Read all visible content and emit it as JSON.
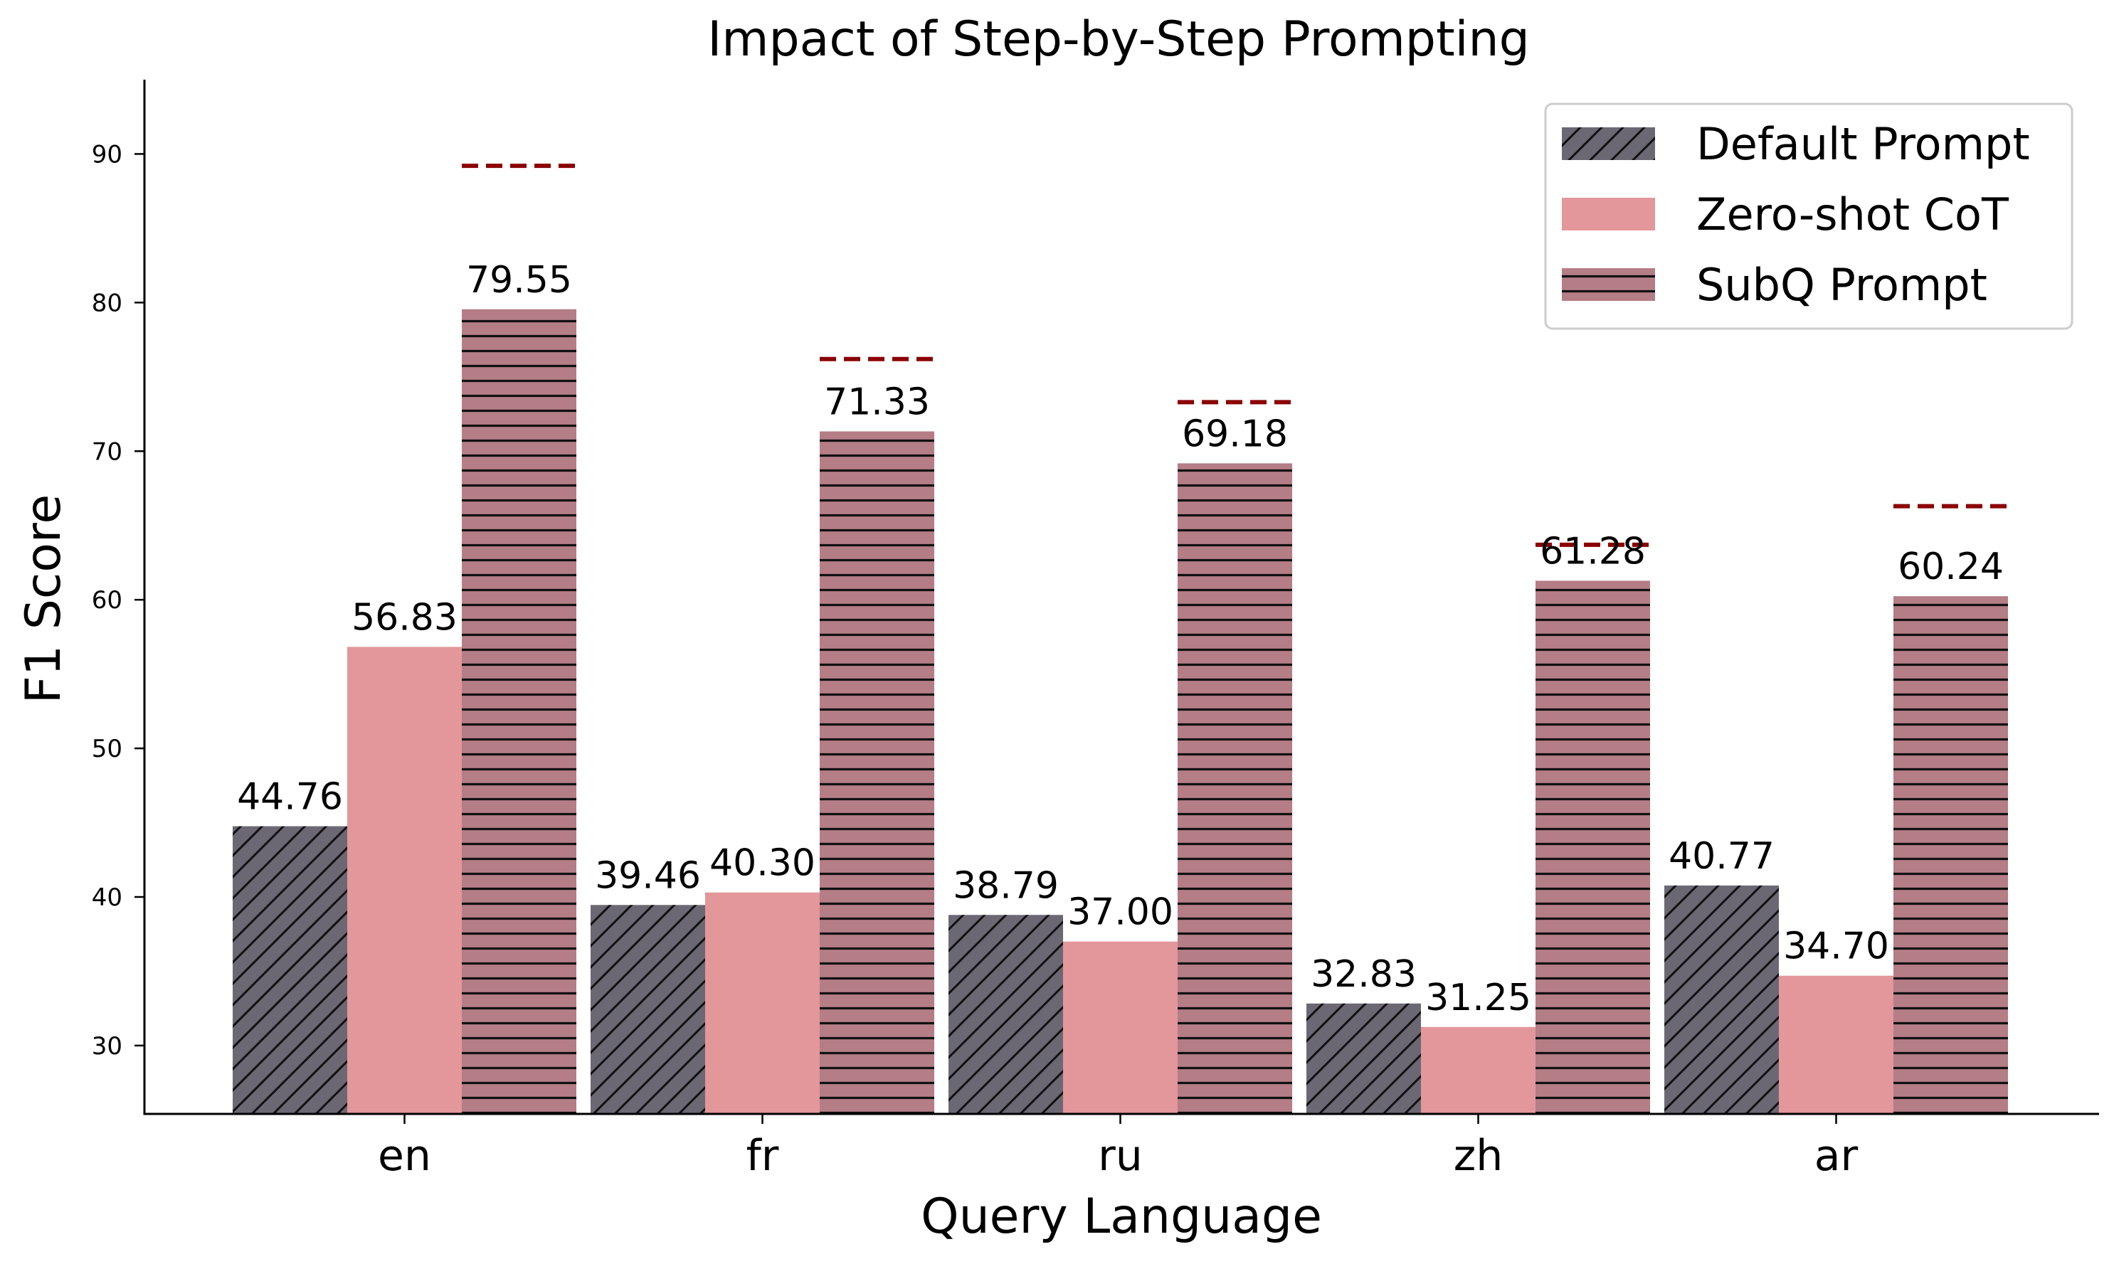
{
  "chart_data": {
    "type": "bar",
    "title": "Impact of Step-by-Step Prompting",
    "xlabel": "Query Language",
    "ylabel": "F1 Score",
    "categories": [
      "en",
      "fr",
      "ru",
      "zh",
      "ar"
    ],
    "ylim": [
      25.4,
      95
    ],
    "yticks": [
      30,
      40,
      50,
      60,
      70,
      80,
      90
    ],
    "grid": false,
    "legend_position": "top-right",
    "series": [
      {
        "name": "Default Prompt",
        "values": [
          44.76,
          39.46,
          38.79,
          32.83,
          40.77
        ],
        "labels": [
          "44.76",
          "39.46",
          "38.79",
          "32.83",
          "40.77"
        ],
        "color": "#6b6874",
        "hatch": "diagonal"
      },
      {
        "name": "Zero-shot CoT",
        "values": [
          56.83,
          40.3,
          37.0,
          31.25,
          34.7
        ],
        "labels": [
          "56.83",
          "40.30",
          "37.00",
          "31.25",
          "34.70"
        ],
        "color": "#e3979b",
        "hatch": "none"
      },
      {
        "name": "SubQ Prompt",
        "values": [
          79.55,
          71.33,
          69.18,
          61.28,
          60.24
        ],
        "labels": [
          "79.55",
          "71.33",
          "69.18",
          "61.28",
          "60.24"
        ],
        "color": "#b57d86",
        "hatch": "horizontal"
      }
    ],
    "reference_lines": {
      "style": "dashed",
      "color": "#8b0000",
      "series": "SubQ Prompt",
      "values": [
        89.2,
        76.2,
        73.3,
        63.7,
        66.3
      ]
    }
  }
}
